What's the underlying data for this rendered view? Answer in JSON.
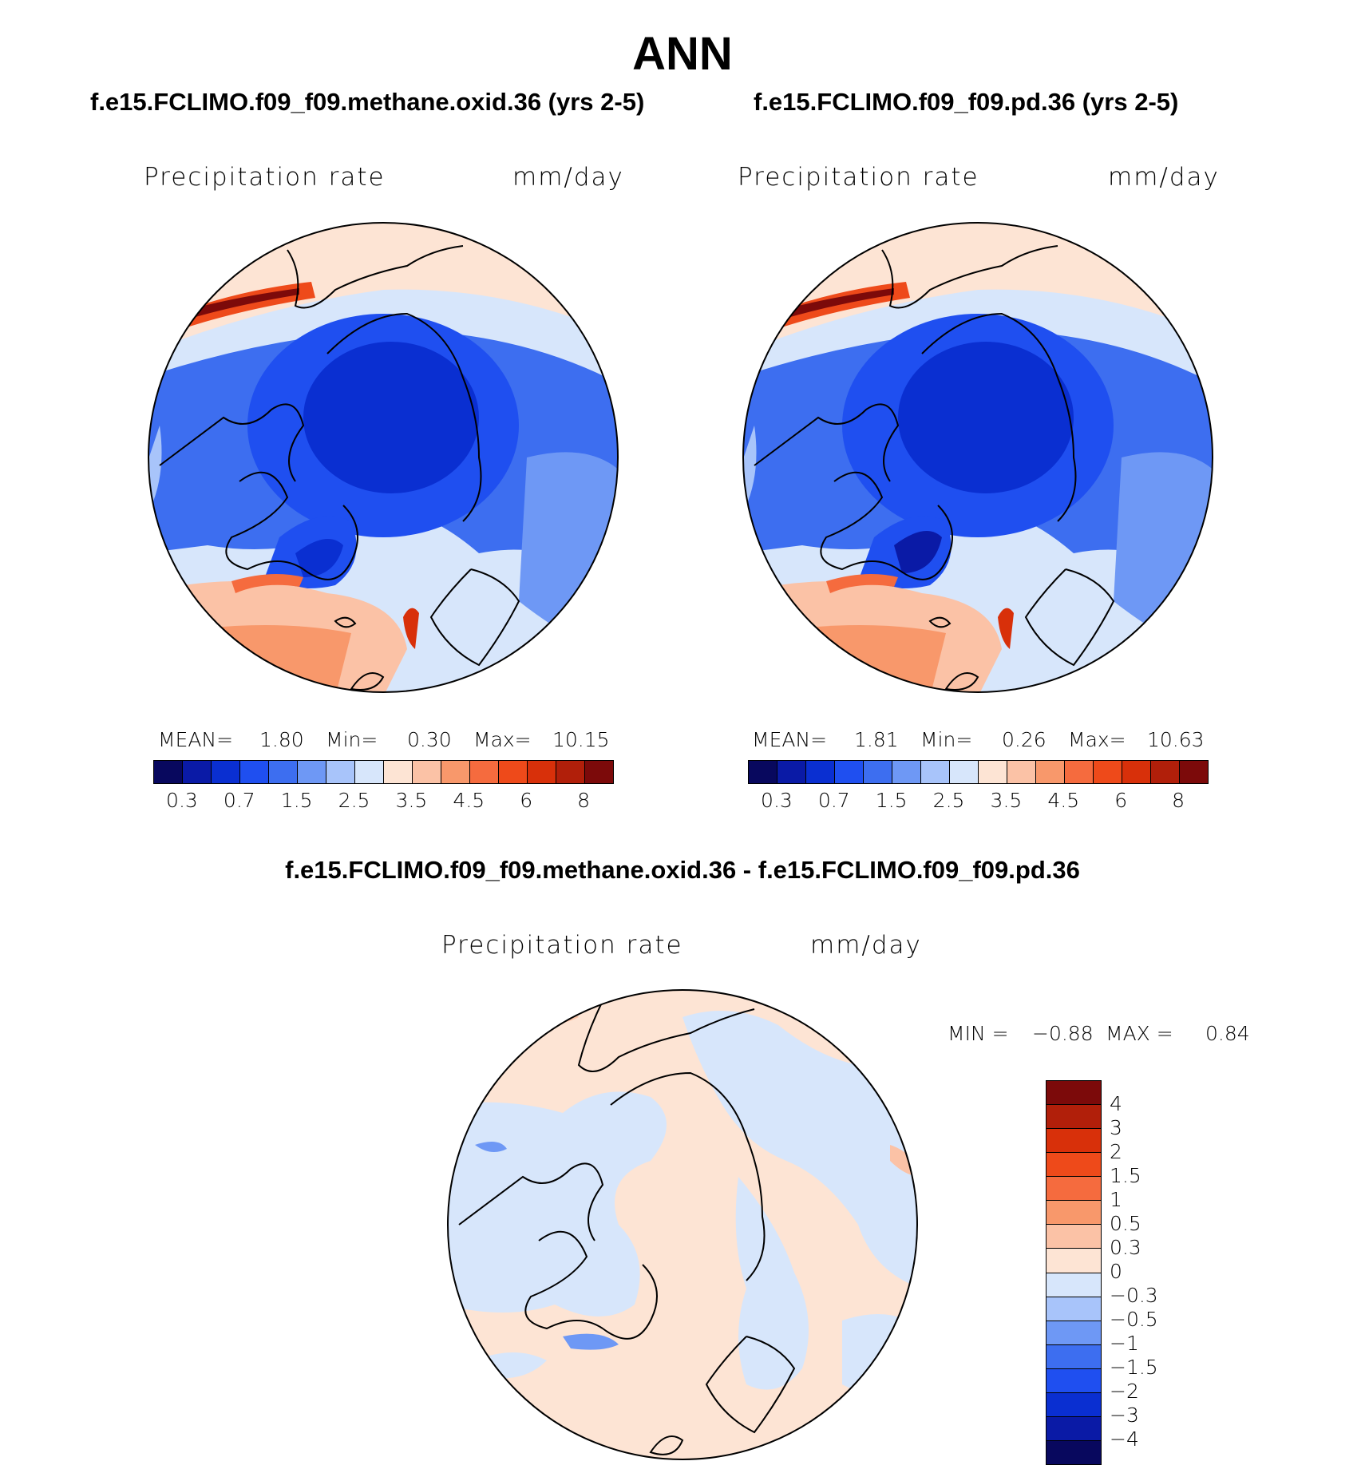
{
  "header": {
    "title": "ANN"
  },
  "panels": [
    {
      "case": "f.e15.FCLIMO.f09_f09.methane.oxid.36 (yrs 2-5)",
      "variable": "Precipitation rate",
      "units": "mm/day",
      "stats": {
        "mean_label": "MEAN=",
        "mean": "1.80",
        "min_label": "Min=",
        "min": "0.30",
        "max_label": "Max=",
        "max": "10.15"
      }
    },
    {
      "case": "f.e15.FCLIMO.f09_f09.pd.36 (yrs 2-5)",
      "variable": "Precipitation rate",
      "units": "mm/day",
      "stats": {
        "mean_label": "MEAN=",
        "mean": "1.81",
        "min_label": "Min=",
        "min": "0.26",
        "max_label": "Max=",
        "max": "10.63"
      }
    }
  ],
  "diff_panel": {
    "case": "f.e15.FCLIMO.f09_f09.methane.oxid.36 - f.e15.FCLIMO.f09_f09.pd.36",
    "variable": "Precipitation rate",
    "units": "mm/day",
    "stats": {
      "min_label": "MIN =",
      "min": "−0.88",
      "max_label": "MAX =",
      "max": "0.84"
    }
  },
  "colorbar_abs": {
    "colors": [
      "#08085e",
      "#0a1aa6",
      "#0a2fd1",
      "#1f4ff0",
      "#3d6ef0",
      "#6e98f5",
      "#a8c4fa",
      "#d7e6fb",
      "#fde4d4",
      "#fbc2a6",
      "#f8986b",
      "#f56b3e",
      "#ee4a1a",
      "#d8300a",
      "#b11f0a",
      "#7c0a0a"
    ],
    "tick_labels": [
      "0.3",
      "0.7",
      "1.5",
      "2.5",
      "3.5",
      "4.5",
      "6",
      "8"
    ]
  },
  "colorbar_diff": {
    "colors_top_down": [
      "#7c0a0a",
      "#b11f0a",
      "#d8300a",
      "#ee4a1a",
      "#f56b3e",
      "#f8986b",
      "#fbc2a6",
      "#fde4d4",
      "#d7e6fb",
      "#a8c4fa",
      "#6e98f5",
      "#3d6ef0",
      "#1f4ff0",
      "#0a2fd1",
      "#0a1aa6",
      "#08085e"
    ],
    "tick_labels_top_down": [
      "4",
      "3",
      "2",
      "1.5",
      "1",
      "0.5",
      "0.3",
      "0",
      "−0.3",
      "−0.5",
      "−1",
      "−1.5",
      "−2",
      "−3",
      "−4"
    ]
  },
  "chart_data": [
    {
      "type": "heatmap",
      "title": "f.e15.FCLIMO.f09_f09.methane.oxid.36 (yrs 2-5)",
      "variable": "Precipitation rate",
      "units": "mm/day",
      "projection": "north polar stereographic",
      "mean": 1.8,
      "min": 0.3,
      "max": 10.15,
      "levels": [
        0.3,
        0.7,
        1.5,
        2.5,
        3.5,
        4.5,
        6,
        8
      ]
    },
    {
      "type": "heatmap",
      "title": "f.e15.FCLIMO.f09_f09.pd.36 (yrs 2-5)",
      "variable": "Precipitation rate",
      "units": "mm/day",
      "projection": "north polar stereographic",
      "mean": 1.81,
      "min": 0.26,
      "max": 10.63,
      "levels": [
        0.3,
        0.7,
        1.5,
        2.5,
        3.5,
        4.5,
        6,
        8
      ]
    },
    {
      "type": "heatmap",
      "title": "f.e15.FCLIMO.f09_f09.methane.oxid.36 - f.e15.FCLIMO.f09_f09.pd.36",
      "variable": "Precipitation rate",
      "units": "mm/day",
      "projection": "north polar stereographic",
      "min": -0.88,
      "max": 0.84,
      "levels": [
        -4,
        -3,
        -2,
        -1.5,
        -1,
        -0.5,
        -0.3,
        0,
        0.3,
        0.5,
        1,
        1.5,
        2,
        3,
        4
      ]
    }
  ]
}
